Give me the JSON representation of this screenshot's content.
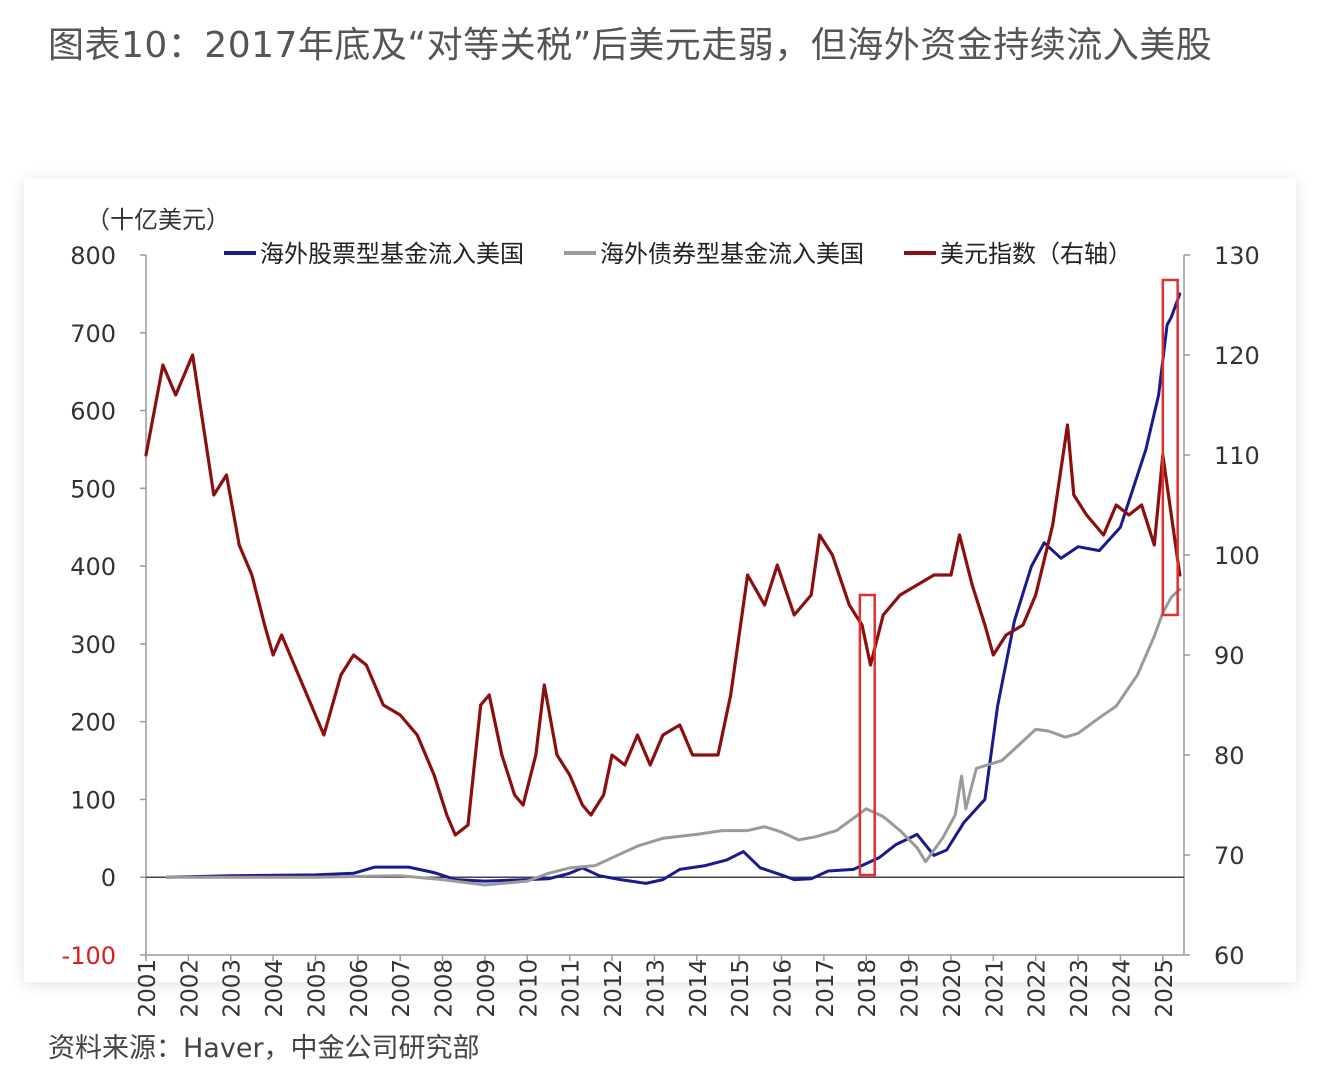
{
  "page": {
    "title": "图表10：2017年底及“对等关税”后美元走弱，但海外资金持续流入美股",
    "source": "资料来源：Haver，中金公司研究部"
  },
  "chart_data": {
    "type": "line",
    "unit_left": "（十亿美元）",
    "x_ticks": [
      "2001",
      "2002",
      "2003",
      "2004",
      "2005",
      "2006",
      "2007",
      "2008",
      "2009",
      "2010",
      "2011",
      "2012",
      "2013",
      "2014",
      "2015",
      "2016",
      "2017",
      "2018",
      "2019",
      "2020",
      "2021",
      "2022",
      "2023",
      "2024",
      "2025"
    ],
    "xlim": [
      2001,
      2025.5
    ],
    "ylim_left": [
      -100,
      800
    ],
    "yticks_left": [
      -100,
      0,
      100,
      200,
      300,
      400,
      500,
      600,
      700,
      800
    ],
    "ylim_right": [
      60,
      130
    ],
    "yticks_right": [
      60,
      70,
      80,
      90,
      100,
      110,
      120,
      130
    ],
    "legend_position": "top",
    "colors": {
      "equity": "#1a1a8c",
      "bond": "#9a9a9a",
      "dxy": "#8b0f0f",
      "highlight": "#e03030",
      "neg_tick": "#d62020"
    },
    "series": [
      {
        "name": "海外股票型基金流入美国",
        "axis": "left",
        "points": [
          [
            2001.5,
            0
          ],
          [
            2003,
            2
          ],
          [
            2005,
            3
          ],
          [
            2005.9,
            5
          ],
          [
            2006.4,
            13
          ],
          [
            2007.2,
            13
          ],
          [
            2007.8,
            6
          ],
          [
            2008.3,
            -3
          ],
          [
            2009,
            -5
          ],
          [
            2010,
            -3
          ],
          [
            2010.5,
            -2
          ],
          [
            2011,
            5
          ],
          [
            2011.3,
            12
          ],
          [
            2011.7,
            2
          ],
          [
            2012.2,
            -3
          ],
          [
            2012.8,
            -8
          ],
          [
            2013.2,
            -3
          ],
          [
            2013.6,
            10
          ],
          [
            2014.2,
            15
          ],
          [
            2014.7,
            22
          ],
          [
            2015.1,
            33
          ],
          [
            2015.5,
            12
          ],
          [
            2016,
            3
          ],
          [
            2016.3,
            -3
          ],
          [
            2016.7,
            -2
          ],
          [
            2017.1,
            8
          ],
          [
            2017.7,
            10
          ],
          [
            2018.3,
            25
          ],
          [
            2018.7,
            42
          ],
          [
            2019.2,
            55
          ],
          [
            2019.6,
            28
          ],
          [
            2019.9,
            35
          ],
          [
            2020.3,
            70
          ],
          [
            2020.8,
            100
          ],
          [
            2021.1,
            220
          ],
          [
            2021.5,
            330
          ],
          [
            2021.9,
            400
          ],
          [
            2022.2,
            430
          ],
          [
            2022.6,
            410
          ],
          [
            2023,
            425
          ],
          [
            2023.5,
            420
          ],
          [
            2024,
            450
          ],
          [
            2024.6,
            550
          ],
          [
            2024.9,
            620
          ],
          [
            2025.1,
            710
          ],
          [
            2025.2,
            720
          ],
          [
            2025.4,
            750
          ]
        ]
      },
      {
        "name": "海外债券型基金流入美国",
        "axis": "left",
        "points": [
          [
            2001.5,
            0
          ],
          [
            2003,
            0
          ],
          [
            2005,
            0
          ],
          [
            2007,
            2
          ],
          [
            2008,
            -3
          ],
          [
            2009,
            -10
          ],
          [
            2010,
            -5
          ],
          [
            2010.5,
            5
          ],
          [
            2011,
            12
          ],
          [
            2011.6,
            15
          ],
          [
            2012,
            25
          ],
          [
            2012.6,
            40
          ],
          [
            2013.2,
            50
          ],
          [
            2014,
            55
          ],
          [
            2014.6,
            60
          ],
          [
            2015.2,
            60
          ],
          [
            2015.6,
            65
          ],
          [
            2016,
            58
          ],
          [
            2016.4,
            48
          ],
          [
            2016.8,
            52
          ],
          [
            2017.3,
            60
          ],
          [
            2017.8,
            80
          ],
          [
            2018,
            88
          ],
          [
            2018.4,
            78
          ],
          [
            2018.8,
            60
          ],
          [
            2019.2,
            38
          ],
          [
            2019.4,
            20
          ],
          [
            2019.8,
            50
          ],
          [
            2020.1,
            80
          ],
          [
            2020.25,
            130
          ],
          [
            2020.35,
            88
          ],
          [
            2020.6,
            140
          ],
          [
            2020.9,
            145
          ],
          [
            2021.2,
            150
          ],
          [
            2021.6,
            170
          ],
          [
            2022,
            190
          ],
          [
            2022.3,
            188
          ],
          [
            2022.7,
            180
          ],
          [
            2023,
            185
          ],
          [
            2023.5,
            205
          ],
          [
            2023.9,
            220
          ],
          [
            2024.4,
            260
          ],
          [
            2024.8,
            310
          ],
          [
            2025,
            340
          ],
          [
            2025.2,
            360
          ],
          [
            2025.4,
            370
          ]
        ]
      },
      {
        "name": "美元指数（右轴）",
        "axis": "right",
        "points": [
          [
            2001,
            110
          ],
          [
            2001.4,
            119
          ],
          [
            2001.7,
            116
          ],
          [
            2002.1,
            120
          ],
          [
            2002.6,
            106
          ],
          [
            2002.9,
            108
          ],
          [
            2003.2,
            101
          ],
          [
            2003.5,
            98
          ],
          [
            2003.8,
            93
          ],
          [
            2004,
            90
          ],
          [
            2004.2,
            92
          ],
          [
            2004.6,
            88
          ],
          [
            2004.9,
            85
          ],
          [
            2005.2,
            82
          ],
          [
            2005.6,
            88
          ],
          [
            2005.9,
            90
          ],
          [
            2006.2,
            89
          ],
          [
            2006.6,
            85
          ],
          [
            2007,
            84
          ],
          [
            2007.4,
            82
          ],
          [
            2007.8,
            78
          ],
          [
            2008.1,
            74
          ],
          [
            2008.3,
            72
          ],
          [
            2008.6,
            73
          ],
          [
            2008.9,
            85
          ],
          [
            2009.1,
            86
          ],
          [
            2009.4,
            80
          ],
          [
            2009.7,
            76
          ],
          [
            2009.9,
            75
          ],
          [
            2010.2,
            80
          ],
          [
            2010.4,
            87
          ],
          [
            2010.7,
            80
          ],
          [
            2011,
            78
          ],
          [
            2011.3,
            75
          ],
          [
            2011.5,
            74
          ],
          [
            2011.8,
            76
          ],
          [
            2012,
            80
          ],
          [
            2012.3,
            79
          ],
          [
            2012.6,
            82
          ],
          [
            2012.9,
            79
          ],
          [
            2013.2,
            82
          ],
          [
            2013.6,
            83
          ],
          [
            2013.9,
            80
          ],
          [
            2014.2,
            80
          ],
          [
            2014.5,
            80
          ],
          [
            2014.8,
            86
          ],
          [
            2015.2,
            98
          ],
          [
            2015.6,
            95
          ],
          [
            2015.9,
            99
          ],
          [
            2016.3,
            94
          ],
          [
            2016.7,
            96
          ],
          [
            2016.9,
            102
          ],
          [
            2017.2,
            100
          ],
          [
            2017.6,
            95
          ],
          [
            2017.9,
            93
          ],
          [
            2018.1,
            89
          ],
          [
            2018.4,
            94
          ],
          [
            2018.8,
            96
          ],
          [
            2019.2,
            97
          ],
          [
            2019.6,
            98
          ],
          [
            2020,
            98
          ],
          [
            2020.2,
            102
          ],
          [
            2020.5,
            97
          ],
          [
            2020.8,
            93
          ],
          [
            2021,
            90
          ],
          [
            2021.3,
            92
          ],
          [
            2021.7,
            93
          ],
          [
            2022,
            96
          ],
          [
            2022.4,
            103
          ],
          [
            2022.75,
            113
          ],
          [
            2022.9,
            106
          ],
          [
            2023.2,
            104
          ],
          [
            2023.6,
            102
          ],
          [
            2023.9,
            105
          ],
          [
            2024.2,
            104
          ],
          [
            2024.5,
            105
          ],
          [
            2024.8,
            101
          ],
          [
            2025,
            110
          ],
          [
            2025.2,
            104
          ],
          [
            2025.4,
            98
          ]
        ]
      }
    ],
    "highlights": [
      {
        "x_from": 2017.85,
        "x_to": 2018.2,
        "y_from_right": 68,
        "y_to_right": 96
      },
      {
        "x_from": 2025.0,
        "x_to": 2025.35,
        "y_from_right": 94,
        "y_to_right": 127.5
      }
    ]
  }
}
